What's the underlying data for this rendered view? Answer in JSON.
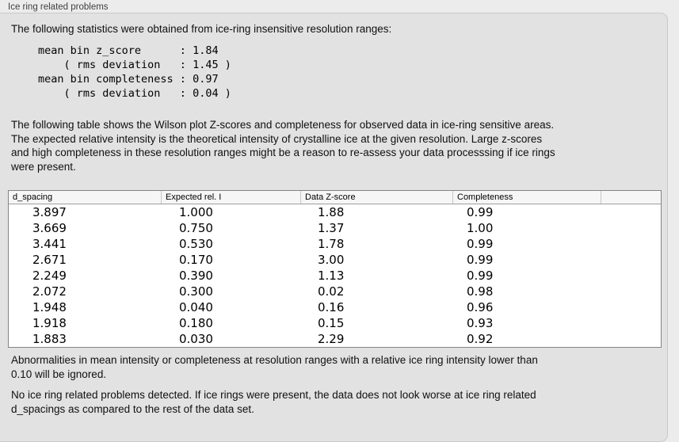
{
  "title": "Ice ring related problems",
  "intro": "The following statistics were obtained from ice-ring insensitive resolution ranges:",
  "stats_block": "mean bin z_score      : 1.84\n    ( rms deviation   : 1.45 )\nmean bin completeness : 0.97\n    ( rms deviation   : 0.04 )",
  "stats": {
    "mean_bin_z_score": "1.84",
    "z_score_rms_deviation": "1.45",
    "mean_bin_completeness": "0.97",
    "completeness_rms_deviation": "0.04"
  },
  "table_description": "The following table shows the Wilson plot Z-scores and completeness for observed data in ice-ring sensitive areas.\nThe expected relative intensity is the theoretical intensity of crystalline ice at the given resolution. Large z-scores\nand high completeness in these resolution ranges might be a reason to re-assess your data processsing if ice rings\nwere present.",
  "table": {
    "columns": [
      "d_spacing",
      "Expected rel. I",
      "Data Z-score",
      "Completeness",
      ""
    ],
    "rows": [
      [
        "3.897",
        "1.000",
        "1.88",
        "0.99"
      ],
      [
        "3.669",
        "0.750",
        "1.37",
        "1.00"
      ],
      [
        "3.441",
        "0.530",
        "1.78",
        "0.99"
      ],
      [
        "2.671",
        "0.170",
        "3.00",
        "0.99"
      ],
      [
        "2.249",
        "0.390",
        "1.13",
        "0.99"
      ],
      [
        "2.072",
        "0.300",
        "0.02",
        "0.98"
      ],
      [
        "1.948",
        "0.040",
        "0.16",
        "0.96"
      ],
      [
        "1.918",
        "0.180",
        "0.15",
        "0.93"
      ],
      [
        "1.883",
        "0.030",
        "2.29",
        "0.92"
      ]
    ]
  },
  "note_ignore": "Abnormalities in mean intensity or completeness at resolution ranges with a relative ice ring intensity lower than\n0.10 will be ignored.",
  "conclusion": "No ice ring related problems detected. If ice rings were present, the data does not look worse at ice ring related\nd_spacings as compared to the rest of the data set."
}
